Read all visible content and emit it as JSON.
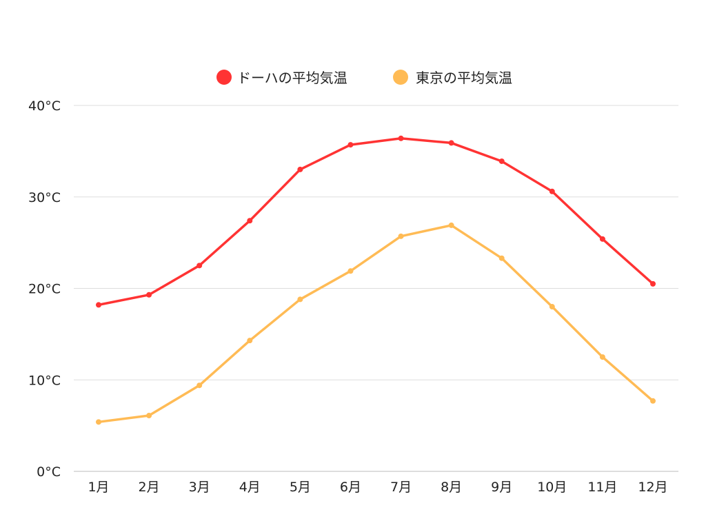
{
  "chart_data": {
    "type": "line",
    "title": "",
    "xlabel": "",
    "ylabel": "",
    "categories": [
      "1月",
      "2月",
      "3月",
      "4月",
      "5月",
      "6月",
      "7月",
      "8月",
      "9月",
      "10月",
      "11月",
      "12月"
    ],
    "y_ticks": [
      "0°C",
      "10°C",
      "20°C",
      "30°C",
      "40°C"
    ],
    "ylim": [
      0,
      40
    ],
    "grid": true,
    "legend_position": "top-center",
    "series": [
      {
        "name": "ドーハの平均気温",
        "color": "#ff3333",
        "values": [
          18.2,
          19.3,
          22.5,
          27.4,
          33.0,
          35.7,
          36.4,
          35.9,
          33.9,
          30.6,
          25.4,
          20.5
        ]
      },
      {
        "name": "東京の平均気温",
        "color": "#ffbb55",
        "values": [
          5.4,
          6.1,
          9.4,
          14.3,
          18.8,
          21.9,
          25.7,
          26.9,
          23.3,
          18.0,
          12.5,
          7.7
        ]
      }
    ]
  }
}
